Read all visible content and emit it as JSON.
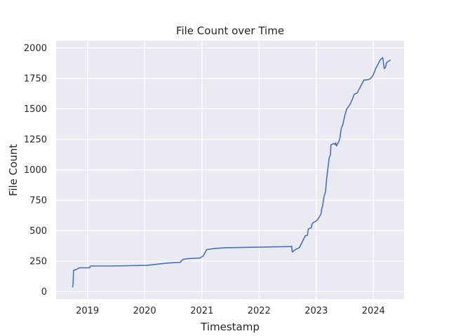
{
  "chart_data": {
    "type": "line",
    "title": "File Count over Time",
    "xlabel": "Timestamp",
    "ylabel": "File Count",
    "x_ticks": [
      "2019",
      "2020",
      "2021",
      "2022",
      "2023",
      "2024"
    ],
    "y_ticks": [
      "0",
      "250",
      "500",
      "750",
      "1000",
      "1250",
      "1500",
      "1750",
      "2000"
    ],
    "xlim": [
      "2018-06-15",
      "2024-07-15"
    ],
    "ylim": [
      -60,
      2060
    ],
    "grid": true,
    "colors": {
      "background": "#eaeaf2",
      "line": "#4c72b0",
      "grid": "#ffffff"
    },
    "series": [
      {
        "x": [
          "2018-09-28",
          "2018-10-01",
          "2018-10-02",
          "2018-10-04",
          "2018-10-20",
          "2018-11-10",
          "2019-01-15",
          "2019-01-20",
          "2019-06-01",
          "2020-01-15",
          "2020-06-01",
          "2020-08-15",
          "2020-08-25",
          "2020-09-05",
          "2020-10-01",
          "2020-12-01",
          "2020-12-20",
          "2021-01-05",
          "2021-01-08",
          "2021-02-01",
          "2021-04-01",
          "2021-06-01",
          "2022-07-25",
          "2022-07-28",
          "2022-08-01",
          "2022-08-20",
          "2022-09-15",
          "2022-10-01",
          "2022-10-12",
          "2022-10-24",
          "2022-11-05",
          "2022-11-12",
          "2022-11-25",
          "2022-12-01",
          "2022-12-05",
          "2022-12-12",
          "2023-01-01",
          "2023-01-15",
          "2023-02-01",
          "2023-02-05",
          "2023-02-10",
          "2023-02-15",
          "2023-02-20",
          "2023-03-01",
          "2023-03-05",
          "2023-03-08",
          "2023-03-20",
          "2023-03-25",
          "2023-04-01",
          "2023-04-05",
          "2023-04-15",
          "2023-04-25",
          "2023-05-01",
          "2023-05-05",
          "2023-05-10",
          "2023-05-15",
          "2023-05-25",
          "2023-06-01",
          "2023-06-05",
          "2023-06-10",
          "2023-06-20",
          "2023-07-01",
          "2023-07-15",
          "2023-08-01",
          "2023-08-10",
          "2023-08-20",
          "2023-09-01",
          "2023-09-10",
          "2023-09-20",
          "2023-10-01",
          "2023-10-10",
          "2023-11-01",
          "2023-12-01",
          "2023-12-15",
          "2024-01-01",
          "2024-01-15",
          "2024-02-01",
          "2024-02-15",
          "2024-03-01",
          "2024-03-10",
          "2024-03-18",
          "2024-03-20",
          "2024-03-23",
          "2024-03-25",
          "2024-04-01",
          "2024-04-05",
          "2024-04-20"
        ],
        "y": [
          35,
          60,
          75,
          175,
          180,
          195,
          195,
          210,
          210,
          215,
          235,
          240,
          255,
          265,
          270,
          275,
          275,
          290,
          290,
          345,
          355,
          360,
          370,
          372,
          325,
          345,
          360,
          400,
          430,
          460,
          460,
          515,
          520,
          525,
          555,
          565,
          580,
          600,
          640,
          680,
          700,
          740,
          780,
          820,
          870,
          920,
          1050,
          1100,
          1120,
          1205,
          1210,
          1215,
          1205,
          1220,
          1195,
          1210,
          1230,
          1260,
          1300,
          1340,
          1370,
          1440,
          1500,
          1530,
          1550,
          1580,
          1620,
          1625,
          1630,
          1660,
          1680,
          1735,
          1740,
          1750,
          1780,
          1830,
          1870,
          1905,
          1920,
          1830,
          1840,
          1850,
          1870,
          1880,
          1885,
          1890,
          1900
        ]
      }
    ]
  }
}
